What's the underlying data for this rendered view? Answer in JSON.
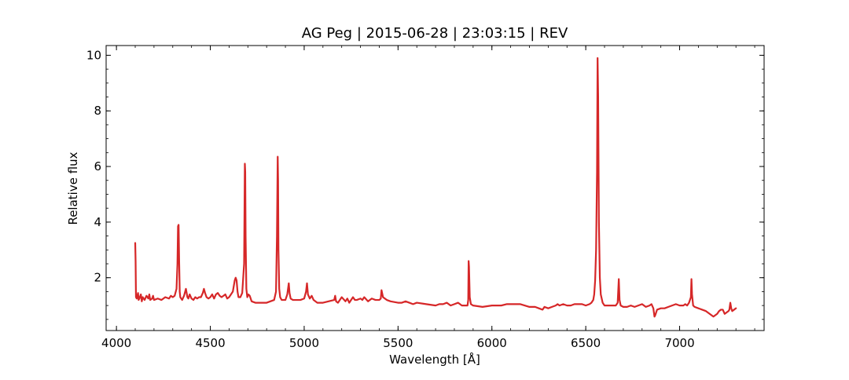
{
  "chart_data": {
    "type": "line",
    "title": "AG Peg | 2015-06-28 | 23:03:15 | REV",
    "xlabel": "Wavelength [Å]",
    "ylabel": "Relative flux",
    "xlim": [
      3945,
      7450
    ],
    "ylim": [
      0.1,
      10.35
    ],
    "x_ticks": [
      4000,
      4500,
      5000,
      5500,
      6000,
      6500,
      7000
    ],
    "y_ticks": [
      2,
      4,
      6,
      8,
      10
    ],
    "x_minor_step": 100,
    "y_minor_step": 0.5,
    "grid": false,
    "series": [
      {
        "color": "#d62728",
        "x": [
          4100,
          4102,
          4104,
          4108,
          4115,
          4118,
          4122,
          4130,
          4135,
          4140,
          4150,
          4160,
          4170,
          4175,
          4180,
          4190,
          4195,
          4200,
          4220,
          4240,
          4260,
          4280,
          4290,
          4300,
          4310,
          4320,
          4325,
          4328,
          4331,
          4334,
          4337,
          4340,
          4345,
          4350,
          4360,
          4370,
          4378,
          4383,
          4390,
          4400,
          4410,
          4420,
          4430,
          4440,
          4450,
          4460,
          4466,
          4472,
          4480,
          4490,
          4500,
          4510,
          4520,
          4530,
          4540,
          4550,
          4560,
          4570,
          4580,
          4590,
          4600,
          4610,
          4620,
          4630,
          4635,
          4640,
          4645,
          4650,
          4660,
          4670,
          4680,
          4684,
          4686,
          4688,
          4692,
          4697,
          4703,
          4710,
          4720,
          4740,
          4760,
          4780,
          4800,
          4820,
          4840,
          4850,
          4855,
          4859,
          4861,
          4863,
          4867,
          4872,
          4880,
          4900,
          4910,
          4918,
          4922,
          4928,
          4940,
          4960,
          4980,
          5000,
          5010,
          5015,
          5020,
          5030,
          5040,
          5050,
          5070,
          5100,
          5130,
          5160,
          5165,
          5170,
          5180,
          5200,
          5220,
          5230,
          5240,
          5260,
          5270,
          5280,
          5300,
          5310,
          5320,
          5340,
          5360,
          5380,
          5400,
          5408,
          5412,
          5420,
          5440,
          5460,
          5500,
          5520,
          5540,
          5560,
          5580,
          5600,
          5650,
          5700,
          5720,
          5740,
          5760,
          5780,
          5800,
          5820,
          5840,
          5860,
          5870,
          5874,
          5876,
          5878,
          5882,
          5888,
          5900,
          5950,
          6000,
          6050,
          6080,
          6100,
          6150,
          6200,
          6230,
          6250,
          6270,
          6280,
          6300,
          6320,
          6340,
          6350,
          6360,
          6380,
          6400,
          6420,
          6440,
          6460,
          6480,
          6500,
          6520,
          6530,
          6540,
          6545,
          6550,
          6555,
          6560,
          6563,
          6566,
          6570,
          6575,
          6580,
          6590,
          6600,
          6620,
          6640,
          6660,
          6670,
          6676,
          6680,
          6686,
          6700,
          6720,
          6740,
          6760,
          6780,
          6800,
          6820,
          6840,
          6850,
          6860,
          6866,
          6870,
          6880,
          6900,
          6920,
          6940,
          6960,
          6980,
          7000,
          7020,
          7030,
          7040,
          7050,
          7060,
          7063,
          7066,
          7072,
          7080,
          7100,
          7120,
          7140,
          7160,
          7180,
          7190,
          7200,
          7210,
          7220,
          7230,
          7240,
          7250,
          7260,
          7265,
          7270,
          7275,
          7280,
          7290,
          7300
        ],
        "y": [
          3.25,
          2.6,
          1.3,
          1.25,
          1.45,
          1.2,
          1.25,
          1.4,
          1.15,
          1.3,
          1.2,
          1.35,
          1.25,
          1.4,
          1.2,
          1.25,
          1.35,
          1.2,
          1.25,
          1.2,
          1.3,
          1.25,
          1.35,
          1.3,
          1.35,
          1.6,
          2.5,
          3.85,
          3.9,
          2.6,
          1.5,
          1.3,
          1.25,
          1.2,
          1.35,
          1.6,
          1.3,
          1.25,
          1.4,
          1.25,
          1.2,
          1.3,
          1.25,
          1.3,
          1.3,
          1.45,
          1.6,
          1.45,
          1.3,
          1.25,
          1.3,
          1.4,
          1.25,
          1.4,
          1.45,
          1.35,
          1.3,
          1.35,
          1.4,
          1.25,
          1.3,
          1.4,
          1.5,
          1.9,
          2.0,
          1.9,
          1.5,
          1.3,
          1.3,
          1.45,
          2.5,
          6.1,
          5.8,
          3.5,
          1.6,
          1.3,
          1.4,
          1.35,
          1.15,
          1.1,
          1.1,
          1.1,
          1.1,
          1.15,
          1.2,
          1.5,
          3.5,
          6.35,
          5.5,
          3.0,
          1.6,
          1.3,
          1.2,
          1.2,
          1.4,
          1.8,
          1.45,
          1.25,
          1.2,
          1.2,
          1.2,
          1.25,
          1.5,
          1.8,
          1.4,
          1.25,
          1.35,
          1.2,
          1.1,
          1.1,
          1.15,
          1.2,
          1.35,
          1.15,
          1.1,
          1.3,
          1.15,
          1.25,
          1.1,
          1.3,
          1.2,
          1.2,
          1.25,
          1.2,
          1.3,
          1.15,
          1.25,
          1.2,
          1.2,
          1.25,
          1.55,
          1.3,
          1.2,
          1.15,
          1.1,
          1.1,
          1.15,
          1.1,
          1.05,
          1.1,
          1.05,
          1.0,
          1.05,
          1.05,
          1.1,
          1.0,
          1.05,
          1.1,
          1.0,
          1.0,
          1.0,
          1.2,
          2.6,
          2.4,
          1.3,
          1.05,
          1.0,
          0.95,
          1.0,
          1.0,
          1.05,
          1.05,
          1.05,
          0.95,
          0.95,
          0.9,
          0.85,
          0.95,
          0.9,
          0.95,
          1.0,
          1.05,
          1.0,
          1.05,
          1.0,
          1.0,
          1.05,
          1.05,
          1.05,
          1.0,
          1.05,
          1.1,
          1.2,
          1.4,
          1.9,
          3.0,
          5.8,
          9.9,
          8.5,
          4.0,
          2.0,
          1.4,
          1.1,
          1.0,
          1.0,
          1.0,
          1.0,
          1.1,
          1.95,
          1.2,
          1.0,
          0.95,
          0.95,
          1.0,
          0.95,
          1.0,
          1.05,
          0.95,
          1.0,
          1.05,
          0.9,
          0.6,
          0.65,
          0.85,
          0.9,
          0.9,
          0.95,
          1.0,
          1.05,
          1.0,
          1.0,
          1.05,
          1.0,
          1.1,
          1.3,
          1.95,
          1.4,
          1.0,
          0.95,
          0.9,
          0.85,
          0.8,
          0.7,
          0.6,
          0.65,
          0.7,
          0.8,
          0.85,
          0.85,
          0.7,
          0.75,
          0.8,
          0.85,
          1.1,
          0.9,
          0.8,
          0.85,
          0.9
        ]
      }
    ]
  }
}
